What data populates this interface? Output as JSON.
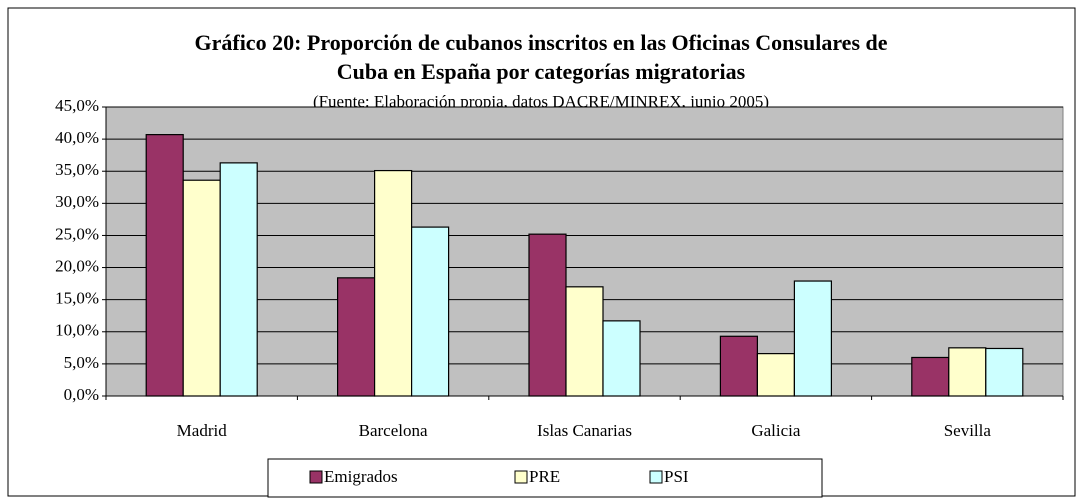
{
  "chart_data": {
    "type": "bar",
    "title": "Gráfico 20: Proporción de cubanos inscritos en las Oficinas Consulares de",
    "title_line2": "Cuba en España por categorías migratorias",
    "subtitle": "(Fuente: Elaboración propia, datos DACRE/MINREX, junio 2005)",
    "categories": [
      "Madrid",
      "Barcelona",
      "Islas Canarias",
      "Galicia",
      "Sevilla"
    ],
    "series": [
      {
        "name": "Emigrados",
        "color": "#993366",
        "values": [
          40.7,
          18.4,
          25.2,
          9.3,
          6.0
        ]
      },
      {
        "name": "PRE",
        "color": "#ffffcc",
        "values": [
          33.6,
          35.1,
          17.0,
          6.6,
          7.5
        ]
      },
      {
        "name": "PSI",
        "color": "#ccffff",
        "values": [
          36.3,
          26.3,
          11.7,
          17.9,
          7.4
        ]
      }
    ],
    "ylim": [
      0,
      45
    ],
    "yticks": [
      {
        "value": 0,
        "label": "0,0%"
      },
      {
        "value": 5,
        "label": "5,0%"
      },
      {
        "value": 10,
        "label": "10,0%"
      },
      {
        "value": 15,
        "label": "15,0%"
      },
      {
        "value": 20,
        "label": "20,0%"
      },
      {
        "value": 25,
        "label": "25,0%"
      },
      {
        "value": 30,
        "label": "30,0%"
      },
      {
        "value": 35,
        "label": "35,0%"
      },
      {
        "value": 40,
        "label": "40,0%"
      },
      {
        "value": 45,
        "label": "45,0%"
      }
    ],
    "grid": true,
    "legend": "bottom"
  }
}
